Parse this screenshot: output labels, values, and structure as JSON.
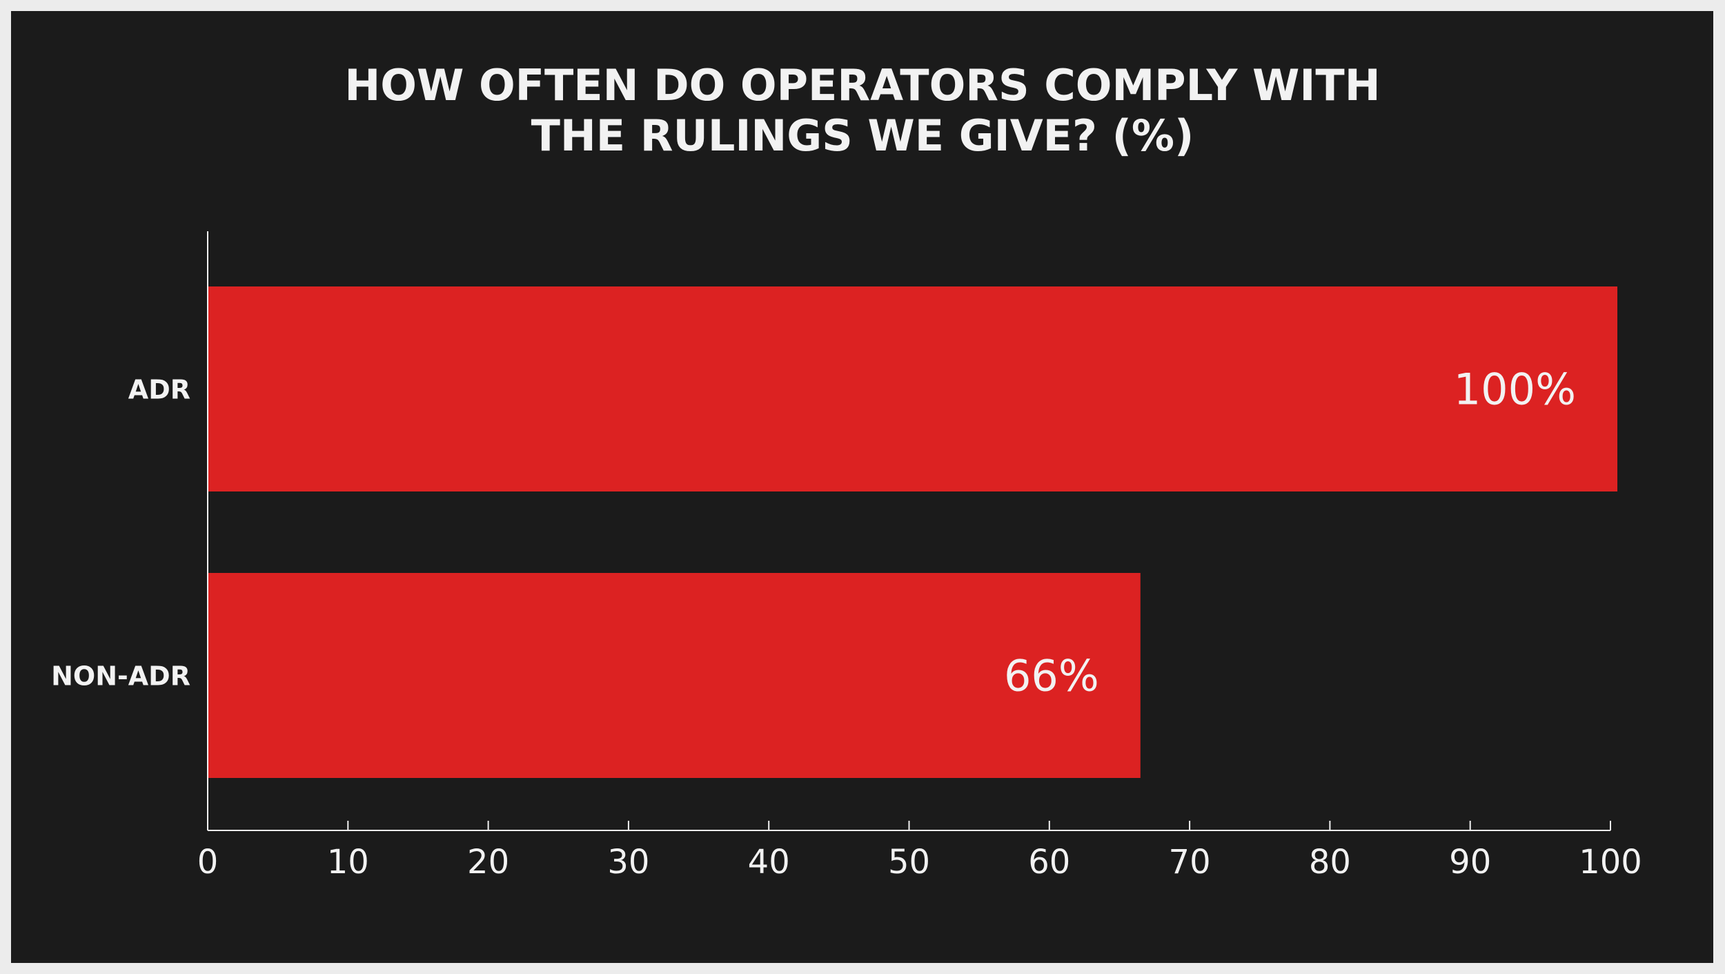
{
  "chart_data": {
    "type": "bar",
    "orientation": "horizontal",
    "title_lines": [
      "HOW OFTEN DO OPERATORS COMPLY WITH",
      "THE RULINGS WE GIVE? (%)"
    ],
    "categories": [
      "ADR",
      "NON-ADR"
    ],
    "values": [
      100,
      66
    ],
    "data_labels": [
      "100%",
      "66%"
    ],
    "xlim": [
      0,
      100
    ],
    "x_ticks": [
      0,
      10,
      20,
      30,
      40,
      50,
      60,
      70,
      80,
      90,
      100
    ],
    "grid": false,
    "colors": {
      "background": "#1b1b1b",
      "page": "#ececec",
      "bar": "#dc2222",
      "text": "#f2f2f2"
    }
  }
}
